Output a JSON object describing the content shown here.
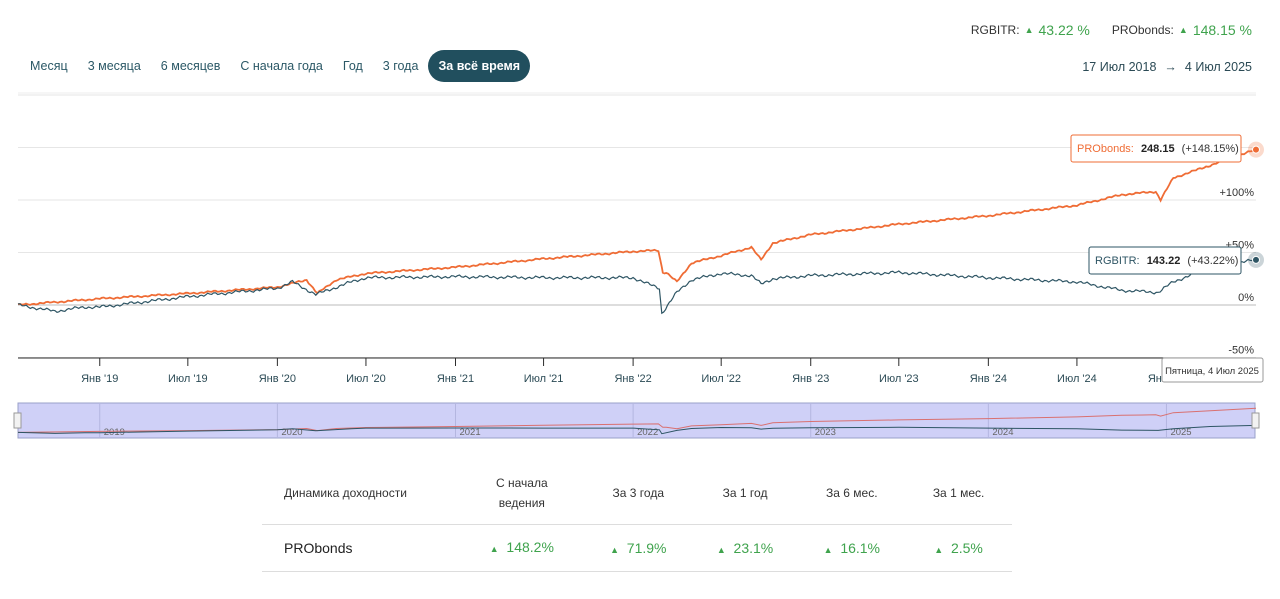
{
  "summary": [
    {
      "name": "RGBITR:",
      "value": "43.22 %"
    },
    {
      "name": "PRObonds:",
      "value": "148.15 %"
    }
  ],
  "periods": [
    "Месяц",
    "3 месяца",
    "6 месяцев",
    "С начала года",
    "Год",
    "3 года",
    "За всё время"
  ],
  "active_period": "За всё время",
  "date_range": {
    "from": "17 Июл 2018",
    "arrow": "→",
    "to": "4 Июл 2025"
  },
  "colors": {
    "probonds": "#ef6c35",
    "rgbitr": "#2e5564",
    "positive": "#3fa34d",
    "navigator_fill": "#cfd0f7"
  },
  "tooltips": {
    "probonds": {
      "name": "PRObonds:",
      "value": "248.15",
      "change": "(+148.15%)"
    },
    "rgbitr": {
      "name": "RGBITR:",
      "value": "143.22",
      "change": "(+43.22%)"
    },
    "date": "Пятница, 4 Июл 2025"
  },
  "navigator": {
    "years": [
      "2019",
      "2020",
      "2021",
      "2022",
      "2023",
      "2024",
      "2025"
    ]
  },
  "chart_data": {
    "type": "line",
    "x_start": "2018-07-17",
    "x_end": "2025-07-04",
    "xlabel_ticks": [
      "Янв '19",
      "Июл '19",
      "Янв '20",
      "Июл '20",
      "Янв '21",
      "Июл '21",
      "Янв '22",
      "Июл '22",
      "Янв '23",
      "Июл '23",
      "Янв '24",
      "Июл '24",
      "Янв '25"
    ],
    "y_ticks": [
      "+100%",
      "+50%",
      "0%",
      "-50%"
    ],
    "y_unit": "% change",
    "ylim": [
      -50,
      200
    ],
    "grid": true,
    "series": [
      {
        "name": "PRObonds",
        "x": [
          "2018-07-17",
          "2019-01-01",
          "2019-07-01",
          "2020-01-01",
          "2020-03-01",
          "2020-03-23",
          "2020-05-01",
          "2020-07-01",
          "2021-01-01",
          "2021-07-01",
          "2022-01-01",
          "2022-02-22",
          "2022-03-01",
          "2022-03-03",
          "2022-03-10",
          "2022-04-01",
          "2022-05-01",
          "2022-07-01",
          "2022-09-01",
          "2022-09-21",
          "2022-10-15",
          "2023-01-01",
          "2023-07-01",
          "2024-01-01",
          "2024-07-01",
          "2024-10-01",
          "2024-12-10",
          "2024-12-20",
          "2025-01-15",
          "2025-04-01",
          "2025-07-04"
        ],
        "values": [
          0,
          6,
          11,
          17,
          24,
          11,
          24,
          30,
          36,
          44,
          51,
          52,
          36,
          31,
          31,
          22,
          40,
          47,
          55,
          43,
          59,
          67,
          77,
          85,
          95,
          105,
          108,
          100,
          121,
          133,
          148
        ]
      },
      {
        "name": "RGBITR",
        "x": [
          "2018-07-17",
          "2018-10-01",
          "2018-12-01",
          "2019-01-01",
          "2019-07-01",
          "2020-01-01",
          "2020-02-01",
          "2020-03-20",
          "2020-06-01",
          "2020-07-01",
          "2021-01-01",
          "2021-07-01",
          "2022-01-01",
          "2022-02-01",
          "2022-02-24",
          "2022-03-01",
          "2022-04-01",
          "2022-05-01",
          "2022-07-01",
          "2022-09-01",
          "2022-09-21",
          "2022-10-15",
          "2023-01-01",
          "2023-07-01",
          "2024-01-01",
          "2024-07-01",
          "2024-10-01",
          "2024-12-15",
          "2025-01-15",
          "2025-04-01",
          "2025-07-04"
        ],
        "values": [
          0,
          -6,
          -2,
          -2,
          8,
          16,
          22,
          10,
          22,
          26,
          27,
          26,
          26,
          20,
          16,
          -8,
          12,
          24,
          30,
          28,
          20,
          25,
          28,
          31,
          26,
          22,
          14,
          12,
          22,
          36,
          43
        ]
      }
    ]
  },
  "performance": {
    "headers": [
      "Динамика доходности",
      "С начала ведения",
      "За 3 года",
      "За 1 год",
      "За 6 мес.",
      "За 1 мес."
    ],
    "header_line1": "С начала",
    "header_line2": "ведения",
    "rows": [
      {
        "name": "PRObonds",
        "values": [
          "148.2%",
          "71.9%",
          "23.1%",
          "16.1%",
          "2.5%"
        ]
      }
    ]
  }
}
